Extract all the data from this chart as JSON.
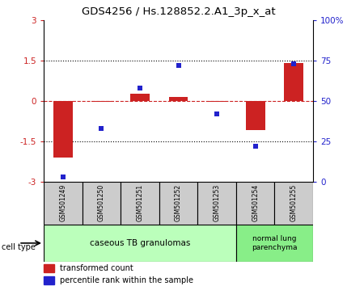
{
  "title": "GDS4256 / Hs.128852.2.A1_3p_x_at",
  "samples": [
    "GSM501249",
    "GSM501250",
    "GSM501251",
    "GSM501252",
    "GSM501253",
    "GSM501254",
    "GSM501255"
  ],
  "transformed_count": [
    -2.1,
    -0.05,
    0.25,
    0.15,
    -0.05,
    -1.1,
    1.4
  ],
  "percentile_rank": [
    3,
    33,
    58,
    72,
    42,
    22,
    73
  ],
  "ylim_left": [
    -3,
    3
  ],
  "ylim_right": [
    0,
    100
  ],
  "yticks_left": [
    -3,
    -1.5,
    0,
    1.5,
    3
  ],
  "yticks_right": [
    0,
    25,
    50,
    75,
    100
  ],
  "ytick_labels_left": [
    "-3",
    "-1.5",
    "0",
    "1.5",
    "3"
  ],
  "ytick_labels_right": [
    "0",
    "25",
    "50",
    "75",
    "100%"
  ],
  "red_color": "#cc2222",
  "blue_color": "#2222cc",
  "bar_width": 0.5,
  "group0_indices": [
    0,
    1,
    2,
    3,
    4
  ],
  "group0_label": "caseous TB granulomas",
  "group0_color": "#bbffbb",
  "group1_indices": [
    5,
    6
  ],
  "group1_label": "normal lung\nparenchyma",
  "group1_color": "#88ee88",
  "cell_type_label": "cell type",
  "legend_red": "transformed count",
  "legend_blue": "percentile rank within the sample",
  "sample_bg_color": "#cccccc"
}
